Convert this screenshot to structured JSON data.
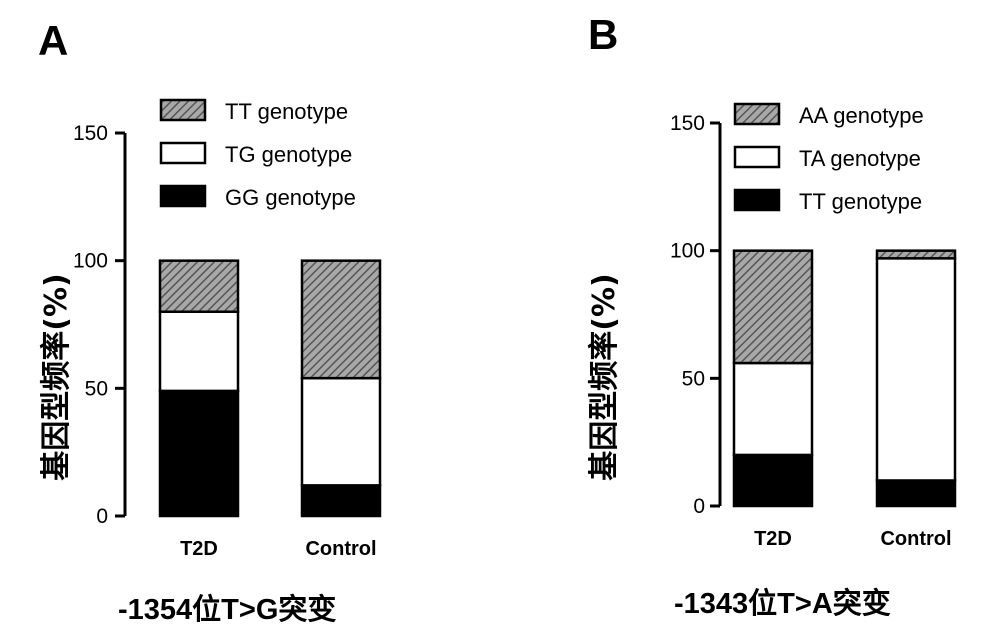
{
  "chart_data": [
    {
      "type": "bar",
      "stacked": true,
      "panel_label": "A",
      "xlabel": "-1354位T>G突变",
      "ylabel": "基因型频率(%)",
      "categories": [
        "T2D",
        "Control"
      ],
      "ylim": [
        0,
        150
      ],
      "yticks": [
        "0",
        "50",
        "100",
        "150"
      ],
      "legend_position": "top-right",
      "series": [
        {
          "name": "GG genotype",
          "values": [
            49,
            12
          ],
          "color": "#000000",
          "pattern": "solid"
        },
        {
          "name": "TG genotype",
          "values": [
            31,
            42
          ],
          "color": "#ffffff",
          "pattern": "none"
        },
        {
          "name": "TT genotype",
          "values": [
            20,
            46
          ],
          "color": "#888888",
          "pattern": "hatch"
        }
      ]
    },
    {
      "type": "bar",
      "stacked": true,
      "panel_label": "B",
      "xlabel": "-1343位T>A突变",
      "ylabel": "基因型频率(%)",
      "categories": [
        "T2D",
        "Control"
      ],
      "ylim": [
        0,
        150
      ],
      "yticks": [
        "0",
        "50",
        "100",
        "150"
      ],
      "legend_position": "top-right",
      "series": [
        {
          "name": "TT genotype",
          "values": [
            20,
            10
          ],
          "color": "#000000",
          "pattern": "solid"
        },
        {
          "name": "TA genotype",
          "values": [
            36,
            87
          ],
          "color": "#ffffff",
          "pattern": "none"
        },
        {
          "name": "AA genotype",
          "values": [
            44,
            3
          ],
          "color": "#888888",
          "pattern": "hatch"
        }
      ]
    }
  ]
}
